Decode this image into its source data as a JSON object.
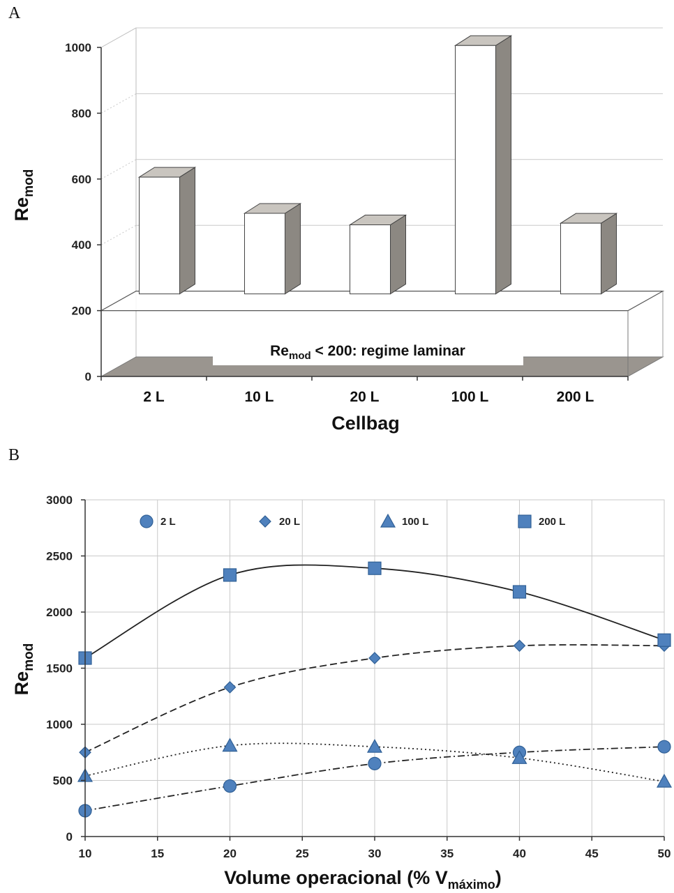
{
  "panels": {
    "a": "A",
    "b": "B"
  },
  "chart_data": [
    {
      "type": "bar",
      "panel": "A",
      "categories": [
        "2 L",
        "10 L",
        "20 L",
        "100 L",
        "200 L"
      ],
      "values": [
        610,
        500,
        465,
        1010,
        470
      ],
      "xlabel": "Cellbag",
      "ylabel": {
        "base": "Re",
        "sub": "mod"
      },
      "ylim": [
        0,
        1000
      ],
      "yticks": [
        "0",
        "200",
        "400",
        "600",
        "800",
        "1000"
      ],
      "annotation": {
        "pre": "Re",
        "sub": "mod",
        "post": " < 200: regime laminar",
        "threshold": 200
      },
      "grid": true,
      "colors": {
        "bar_face": "#ffffff",
        "bar_side": "#8c8882",
        "bar_top": "#c9c5bf",
        "floor": "#9a958f"
      }
    },
    {
      "type": "scatter",
      "panel": "B",
      "x": [
        10,
        20,
        30,
        40,
        50
      ],
      "series": [
        {
          "name": "2 L",
          "marker": "circle",
          "line": "dashdot",
          "values": [
            230,
            450,
            650,
            750,
            800
          ]
        },
        {
          "name": "20 L",
          "marker": "diamond",
          "line": "dashed",
          "values": [
            750,
            1330,
            1590,
            1700,
            1700
          ]
        },
        {
          "name": "100 L",
          "marker": "triangle",
          "line": "dotted",
          "values": [
            540,
            810,
            800,
            700,
            490
          ]
        },
        {
          "name": "200 L",
          "marker": "square",
          "line": "solid",
          "values": [
            1590,
            2330,
            2390,
            2180,
            1750
          ]
        }
      ],
      "xlabel": {
        "base": "Volume operacional (% V",
        "sub": "máximo",
        "post": ")"
      },
      "ylabel": {
        "base": "Re",
        "sub": "mod"
      },
      "xlim": [
        10,
        50
      ],
      "ylim": [
        0,
        3000
      ],
      "xticks": [
        "10",
        "15",
        "20",
        "25",
        "30",
        "35",
        "40",
        "45",
        "50"
      ],
      "yticks": [
        "0",
        "500",
        "1000",
        "1500",
        "2000",
        "2500",
        "3000"
      ],
      "legend": "top",
      "grid": true,
      "colors": {
        "marker_fill": "#4f81bd",
        "marker_stroke": "#2f5f95",
        "line": "#222222"
      }
    }
  ]
}
